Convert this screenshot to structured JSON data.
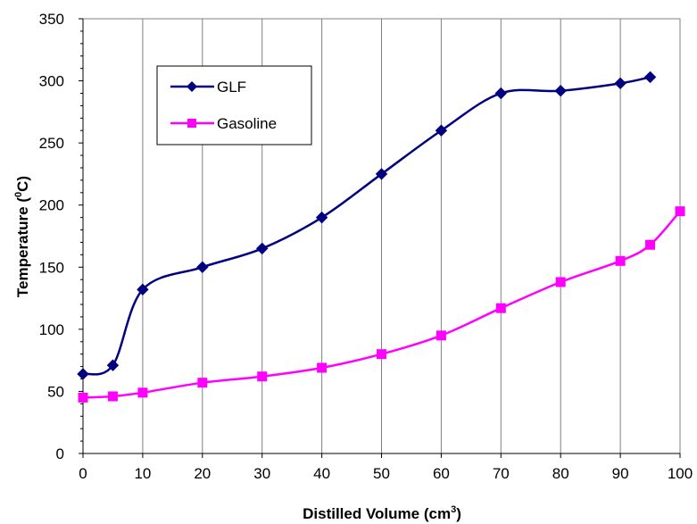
{
  "chart_data": {
    "type": "line",
    "xlabel": "Distilled Volume (cm",
    "xlabel_sup": "3",
    "xlabel_end": ")",
    "ylabel": "Temperature (",
    "ylabel_sup": "0",
    "ylabel_end": "C)",
    "xlim": [
      0,
      100
    ],
    "ylim": [
      0,
      350
    ],
    "x_ticks": [
      0,
      10,
      20,
      30,
      40,
      50,
      60,
      70,
      80,
      90,
      100
    ],
    "y_ticks": [
      0,
      50,
      100,
      150,
      200,
      250,
      300,
      350
    ],
    "grid": "vertical",
    "legend_position": "top-left",
    "series": [
      {
        "name": "GLF",
        "color": "#000080",
        "marker": "diamond",
        "x": [
          0,
          5,
          10,
          20,
          30,
          40,
          50,
          60,
          70,
          80,
          90,
          95
        ],
        "y": [
          64,
          71,
          132,
          150,
          165,
          190,
          225,
          260,
          290,
          292,
          298,
          303
        ]
      },
      {
        "name": "Gasoline",
        "color": "#FF00FF",
        "marker": "square",
        "x": [
          0,
          5,
          10,
          20,
          30,
          40,
          50,
          60,
          70,
          80,
          90,
          95,
          100
        ],
        "y": [
          45,
          46,
          49,
          57,
          62,
          69,
          80,
          95,
          117,
          138,
          155,
          168,
          195
        ]
      }
    ]
  }
}
